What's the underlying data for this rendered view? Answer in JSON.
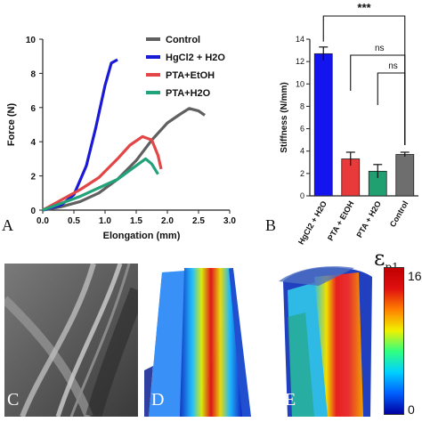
{
  "panels": {
    "A": "A",
    "B": "B",
    "C": "C",
    "D": "D",
    "E": "E"
  },
  "chart_data": [
    {
      "type": "line",
      "xlabel": "Elongation (mm)",
      "ylabel": "Force (N)",
      "xlim": [
        0,
        3.0
      ],
      "ylim": [
        0,
        10
      ],
      "xticks": [
        "0.0",
        "0.5",
        "1.0",
        "1.5",
        "2.0",
        "2.5",
        "3.0"
      ],
      "yticks": [
        "0",
        "2",
        "4",
        "6",
        "8",
        "10"
      ],
      "legend_position": "top-right",
      "series": [
        {
          "name": "Control",
          "color": "#606060",
          "x": [
            0,
            0.3,
            0.6,
            0.9,
            1.2,
            1.5,
            1.75,
            2.0,
            2.2,
            2.35,
            2.5,
            2.6
          ],
          "y": [
            0,
            0.2,
            0.5,
            1.0,
            1.8,
            2.9,
            4.1,
            5.1,
            5.6,
            5.95,
            5.8,
            5.55
          ]
        },
        {
          "name": "HgCl2 + H2O",
          "color": "#1a1ad6",
          "x": [
            0,
            0.3,
            0.5,
            0.7,
            0.85,
            1.0,
            1.1,
            1.2
          ],
          "y": [
            0,
            0.3,
            0.9,
            2.6,
            4.8,
            7.3,
            8.6,
            8.8
          ]
        },
        {
          "name": "PTA+EtOH",
          "color": "#e24646",
          "x": [
            0,
            0.3,
            0.6,
            0.9,
            1.2,
            1.4,
            1.6,
            1.75,
            1.85,
            1.9
          ],
          "y": [
            0,
            0.6,
            1.2,
            1.9,
            3.0,
            3.8,
            4.3,
            4.1,
            3.2,
            2.4
          ]
        },
        {
          "name": "PTA+H2O",
          "color": "#22a27a",
          "x": [
            0,
            0.3,
            0.6,
            0.9,
            1.2,
            1.5,
            1.65,
            1.75,
            1.85
          ],
          "y": [
            0,
            0.4,
            0.8,
            1.3,
            1.8,
            2.6,
            3.0,
            2.7,
            2.1
          ]
        }
      ]
    },
    {
      "type": "bar",
      "ylabel": "Stiffness (N/mm)",
      "ylim": [
        0,
        14
      ],
      "yticks": [
        "0",
        "2",
        "4",
        "6",
        "8",
        "10",
        "12",
        "14"
      ],
      "categories": [
        "HgCl2 + H2O",
        "PTA + EtOH",
        "PTA + H2O",
        "Control"
      ],
      "values": [
        12.7,
        3.3,
        2.2,
        3.7
      ],
      "errors": [
        0.6,
        0.6,
        0.6,
        0.2
      ],
      "colors": [
        "#1414f0",
        "#e83a3a",
        "#20a070",
        "#6e6e6e"
      ],
      "significance": [
        {
          "label": "***",
          "from": 0,
          "to": 3
        },
        {
          "label": "ns",
          "from": 1,
          "to": 3
        },
        {
          "label": "ns",
          "from": 2,
          "to": 3
        }
      ]
    }
  ],
  "colorbar": {
    "symbol": "ε",
    "subscript": "p1",
    "max_label": "16",
    "min_label": "0",
    "stops": [
      "#0000a0",
      "#0060ff",
      "#00d0ff",
      "#30ff80",
      "#f0f000",
      "#ff8000",
      "#e01010",
      "#c00000"
    ]
  }
}
